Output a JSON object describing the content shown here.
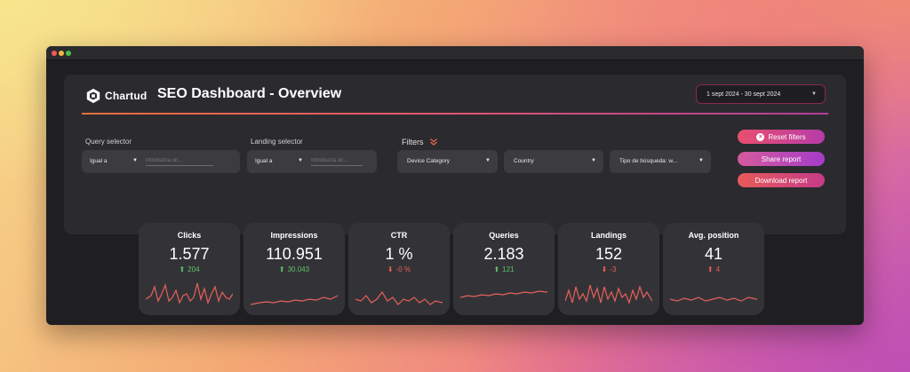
{
  "app": {
    "logo_text": "Chartud",
    "title": "SEO Dashboard - Overview",
    "date_range": "1 sept 2024 - 30 sept 2024"
  },
  "query_selector": {
    "label": "Query selector",
    "operator": "Igual a",
    "placeholder": "Introduzca un..."
  },
  "landing_selector": {
    "label": "Landing selector",
    "operator": "Igual a",
    "placeholder": "Introduzca un..."
  },
  "filters": {
    "label": "Filters",
    "dropdowns": [
      {
        "label": "Device Category"
      },
      {
        "label": "Country"
      },
      {
        "label": "Tipo de búsqueda: w..."
      }
    ]
  },
  "actions": {
    "reset_label": "Reset filters",
    "share_label": "Share report",
    "download_label": "Download report"
  },
  "colors": {
    "accent_orange": "#e8703d",
    "accent_magenta": "#b43e9a",
    "positive": "#5cc36a",
    "negative": "#e8604f",
    "sparkline": "#e8605a"
  },
  "kpis": [
    {
      "title": "Clicks",
      "value": "1.577",
      "delta": "204",
      "direction": "up",
      "icon": "arrow-up-icon"
    },
    {
      "title": "Impressions",
      "value": "110.951",
      "delta": "30.043",
      "direction": "up",
      "icon": "arrow-up-icon"
    },
    {
      "title": "CTR",
      "value": "1 %",
      "delta": "-0 %",
      "direction": "down",
      "icon": "arrow-down-icon"
    },
    {
      "title": "Queries",
      "value": "2.183",
      "delta": "121",
      "direction": "up",
      "icon": "arrow-up-icon"
    },
    {
      "title": "Landings",
      "value": "152",
      "delta": "-3",
      "direction": "down",
      "icon": "arrow-down-icon"
    },
    {
      "title": "Avg. position",
      "value": "41",
      "delta": "4",
      "direction": "up",
      "icon": "arrow-up-icon",
      "delta_color": "negative"
    }
  ]
}
